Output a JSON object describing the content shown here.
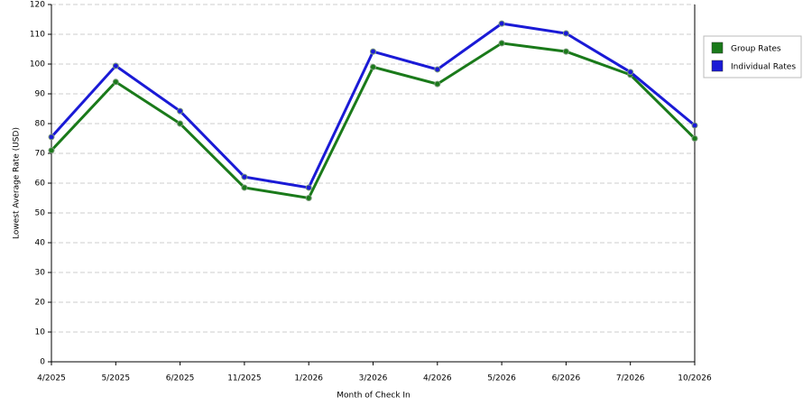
{
  "chart_data": {
    "type": "line",
    "x_label": "Month of Check In",
    "y_label": "Lowest Average Rate (USD)",
    "categories": [
      "4/2025",
      "5/2025",
      "6/2025",
      "11/2025",
      "1/2026",
      "3/2026",
      "4/2026",
      "5/2026",
      "6/2026",
      "7/2026",
      "10/2026"
    ],
    "series": [
      {
        "name": "Group Rates",
        "color": "#1a7a1a",
        "values": [
          71,
          94,
          80,
          58.5,
          55,
          99,
          93.3,
          107,
          104.2,
          96.4,
          75
        ]
      },
      {
        "name": "Individual Rates",
        "color": "#1a1ad6",
        "values": [
          75.5,
          99.4,
          84.2,
          62.1,
          58.5,
          104.2,
          98.2,
          113.6,
          110.3,
          97.3,
          79.4
        ]
      }
    ],
    "ylim": [
      0,
      120
    ],
    "yticks": [
      0,
      10,
      20,
      30,
      40,
      50,
      60,
      70,
      80,
      90,
      100,
      110,
      120
    ],
    "grid": true,
    "legend": "right"
  }
}
